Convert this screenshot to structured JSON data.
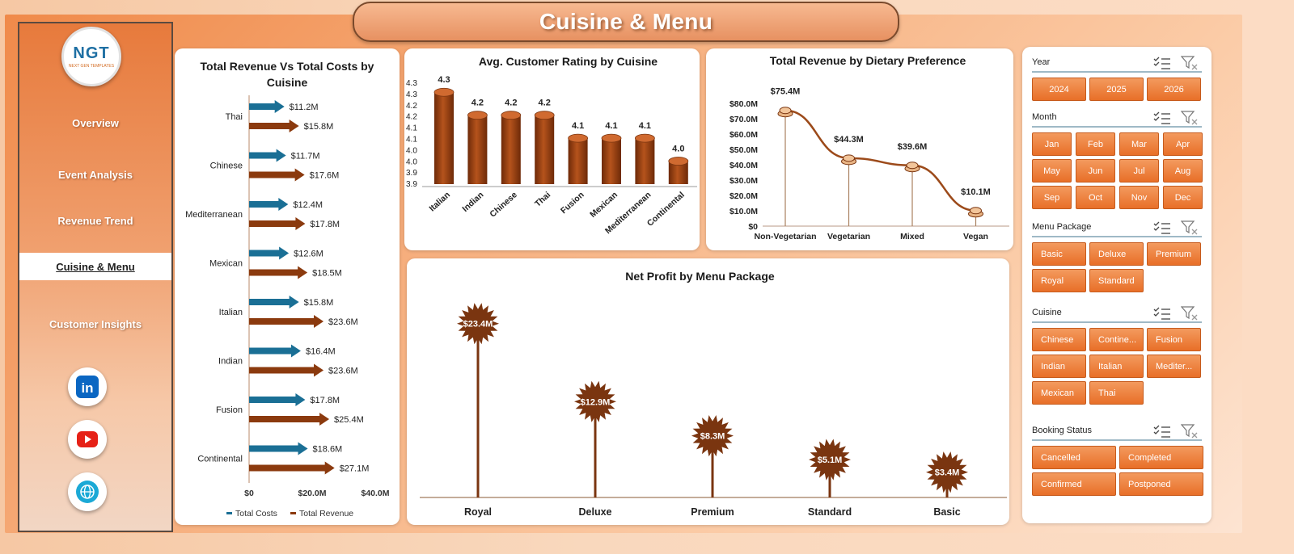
{
  "title": "Cuisine & Menu",
  "logo": {
    "text": "NGT",
    "sub": "NEXT GEN TEMPLATES"
  },
  "nav": {
    "items": [
      {
        "label": "Overview"
      },
      {
        "label": "Event Analysis"
      },
      {
        "label": "Revenue Trend"
      },
      {
        "label": "Cuisine & Menu",
        "active": true
      },
      {
        "label": "Customer Insights"
      }
    ]
  },
  "social": [
    {
      "icon": "linkedin-icon",
      "label": "in",
      "color": "#0a66c2"
    },
    {
      "icon": "youtube-icon",
      "color": "#e62117"
    },
    {
      "icon": "globe-icon",
      "color": "#1ba9d6"
    }
  ],
  "colors": {
    "accent": "#e86f28",
    "revenue": "#8b3a0e",
    "costs": "#1a6f95",
    "dark_brown": "#7a3510"
  },
  "chart_data": [
    {
      "type": "bar",
      "orientation": "horizontal",
      "title": "Total Revenue Vs Total Costs by Cuisine",
      "categories": [
        "Thai",
        "Chinese",
        "Mediterranean",
        "Mexican",
        "Italian",
        "Indian",
        "Fusion",
        "Continental"
      ],
      "series": [
        {
          "name": "Total Costs",
          "values": [
            11.2,
            11.7,
            12.4,
            12.6,
            15.8,
            16.4,
            17.8,
            18.6
          ],
          "labels": [
            "$11.2M",
            "$11.7M",
            "$12.4M",
            "$12.6M",
            "$15.8M",
            "$16.4M",
            "$17.8M",
            "$18.6M"
          ]
        },
        {
          "name": "Total Revenue",
          "values": [
            15.8,
            17.6,
            17.8,
            18.5,
            23.6,
            23.6,
            25.4,
            27.1
          ],
          "labels": [
            "$15.8M",
            "$17.6M",
            "$17.8M",
            "$18.5M",
            "$23.6M",
            "$23.6M",
            "$25.4M",
            "$27.1M"
          ]
        }
      ],
      "x_ticks": [
        "$0",
        "$20.0M",
        "$40.0M"
      ],
      "xlim": [
        0,
        40
      ],
      "legend": "bottom"
    },
    {
      "type": "bar",
      "title": "Avg. Customer Rating by Cuisine",
      "categories": [
        "Italian",
        "Indian",
        "Chinese",
        "Thai",
        "Fusion",
        "Mexican",
        "Mediterranean",
        "Continental"
      ],
      "values": [
        4.3,
        4.2,
        4.2,
        4.2,
        4.1,
        4.1,
        4.1,
        4.0
      ],
      "labels": [
        "4.3",
        "4.2",
        "4.2",
        "4.2",
        "4.1",
        "4.1",
        "4.1",
        "4.0"
      ],
      "y_ticks": [
        "4.3",
        "4.3",
        "4.2",
        "4.2",
        "4.1",
        "4.1",
        "4.0",
        "4.0",
        "3.9",
        "3.9"
      ],
      "ylim": [
        3.9,
        4.35
      ]
    },
    {
      "type": "line",
      "title": "Total Revenue  by Dietary Preference",
      "categories": [
        "Non-Vegetarian",
        "Vegetarian",
        "Mixed",
        "Vegan"
      ],
      "values": [
        75.4,
        44.3,
        39.6,
        10.1
      ],
      "labels": [
        "$75.4M",
        "$44.3M",
        "$39.6M",
        "$10.1M"
      ],
      "y_ticks": [
        "$0",
        "$10.0M",
        "$20.0M",
        "$30.0M",
        "$40.0M",
        "$50.0M",
        "$60.0M",
        "$70.0M",
        "$80.0M"
      ],
      "ylim": [
        0,
        80
      ]
    },
    {
      "type": "bar",
      "style": "lollipop",
      "title": "Net Profit by Menu  Package",
      "categories": [
        "Royal",
        "Deluxe",
        "Premium",
        "Standard",
        "Basic"
      ],
      "values": [
        23.4,
        12.9,
        8.3,
        5.1,
        3.4
      ],
      "labels": [
        "$23.4M",
        "$12.9M",
        "$8.3M",
        "$5.1M",
        "$3.4M"
      ],
      "ylim": [
        0,
        25
      ]
    }
  ],
  "slicers": [
    {
      "title": "Year",
      "items": [
        "2024",
        "2025",
        "2026"
      ]
    },
    {
      "title": "Month",
      "items": [
        "Jan",
        "Feb",
        "Mar",
        "Apr",
        "May",
        "Jun",
        "Jul",
        "Aug",
        "Sep",
        "Oct",
        "Nov",
        "Dec"
      ]
    },
    {
      "title": "Menu Package",
      "items": [
        "Basic",
        "Deluxe",
        "Premium",
        "Royal",
        "Standard"
      ]
    },
    {
      "title": "Cuisine",
      "items": [
        "Chinese",
        "Contine...",
        "Fusion",
        "Indian",
        "Italian",
        "Mediter...",
        "Mexican",
        "Thai"
      ]
    },
    {
      "title": "Booking Status",
      "items": [
        "Cancelled",
        "Completed",
        "Confirmed",
        "Postponed"
      ]
    }
  ]
}
